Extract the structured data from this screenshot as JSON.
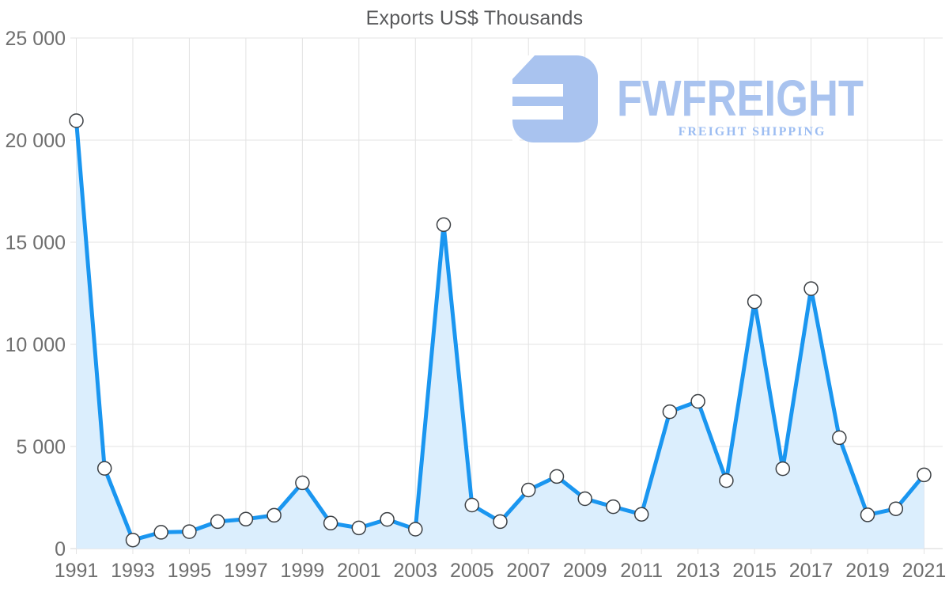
{
  "title": "Exports US$ Thousands",
  "watermark": {
    "brand": "FWFREIGHT",
    "tagline": "FREIGHT SHIPPING",
    "icon_color": "#a9c3ef",
    "brand_color": "#a9c3ef",
    "tagline_color": "#9cbdf2"
  },
  "chart_data": {
    "type": "area",
    "title": "Exports US$ Thousands",
    "xlabel": "",
    "ylabel": "",
    "x": [
      1991,
      1992,
      1993,
      1994,
      1995,
      1996,
      1997,
      1998,
      1999,
      2000,
      2001,
      2002,
      2003,
      2004,
      2005,
      2006,
      2007,
      2008,
      2009,
      2010,
      2011,
      2012,
      2013,
      2014,
      2015,
      2016,
      2017,
      2018,
      2019,
      2020,
      2021
    ],
    "series": [
      {
        "name": "Exports US$ Thousands",
        "values": [
          20950,
          3930,
          420,
          800,
          830,
          1320,
          1440,
          1630,
          3220,
          1250,
          1010,
          1430,
          950,
          15860,
          2130,
          1320,
          2870,
          3530,
          2440,
          2050,
          1680,
          6700,
          7210,
          3330,
          12090,
          3910,
          12730,
          5430,
          1650,
          1950,
          3610
        ]
      }
    ],
    "ylim": [
      0,
      25000
    ],
    "ytick_step": 5000,
    "ytick_labels": [
      "0",
      "5 000",
      "10 000",
      "15 000",
      "20 000",
      "25 000"
    ],
    "xtick_labels": [
      "1991",
      "1993",
      "1995",
      "1997",
      "1999",
      "2001",
      "2003",
      "2005",
      "2007",
      "2009",
      "2011",
      "2013",
      "2015",
      "2017",
      "2019",
      "2021"
    ],
    "grid": true,
    "legend": "none",
    "line_color": "#1a96f0",
    "fill_color": "#dbeefd",
    "marker_fill": "#ffffff",
    "marker_stroke": "#3b3f43",
    "grid_color": "#e3e3e3",
    "axis_line_color": "#d6d6d6",
    "tick_label_color": "#6f6f6f",
    "title_color": "#58595b"
  }
}
